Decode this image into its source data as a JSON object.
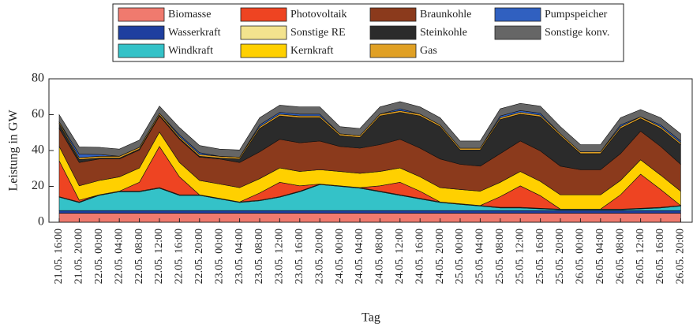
{
  "chart_data": {
    "type": "stacked_area",
    "ylabel": "Leistung in GW",
    "xlabel": "Tag",
    "categories": [
      "21.05. 16:00",
      "21.05. 20:00",
      "22.05. 00:00",
      "22.05. 04:00",
      "22.05. 08:00",
      "22.05. 12:00",
      "22.05. 16:00",
      "22.05. 20:00",
      "23.05. 00:00",
      "23.05. 04:00",
      "23.05. 08:00",
      "23.05. 12:00",
      "23.05. 16:00",
      "23.05. 20:00",
      "24.05. 00:00",
      "24.05. 04:00",
      "24.05. 08:00",
      "24.05. 12:00",
      "24.05. 16:00",
      "24.05. 20:00",
      "25.05. 00:00",
      "25.05. 04:00",
      "25.05. 08:00",
      "25.05. 12:00",
      "25.05. 16:00",
      "25.05. 20:00",
      "26.05. 00:00",
      "26.05. 04:00",
      "26.05. 08:00",
      "26.05. 12:00",
      "26.05. 16:00",
      "26.05. 20:00"
    ],
    "ylim": [
      0,
      80
    ],
    "yticks": [
      0,
      20,
      40,
      60,
      80
    ],
    "grid": false,
    "series": [
      {
        "name": "Biomasse",
        "color": "#f07a6e",
        "values": [
          5,
          5,
          5,
          5,
          5,
          5,
          5,
          5,
          5,
          5,
          5,
          5,
          5,
          5,
          5,
          5,
          5,
          5,
          5,
          5,
          5,
          5,
          5,
          5,
          5,
          5,
          5,
          5,
          5,
          5,
          5,
          5
        ]
      },
      {
        "name": "Wasserkraft",
        "color": "#1f3f9f",
        "values": [
          1.5,
          1.5,
          1.5,
          1.5,
          1.5,
          1.5,
          1.5,
          1.5,
          1.5,
          1.5,
          1.5,
          1.5,
          1.5,
          1.5,
          1.5,
          1.5,
          1.5,
          1.5,
          1.5,
          1.5,
          1.5,
          1.5,
          1.5,
          1.5,
          1.5,
          1.5,
          1.5,
          1.5,
          1.5,
          1.5,
          1.5,
          1.5
        ]
      },
      {
        "name": "Windkraft",
        "color": "#34c2c8",
        "values": [
          7.5,
          4.5,
          8.5,
          10.5,
          10.5,
          12.5,
          8.5,
          8.5,
          6.5,
          4.5,
          5.5,
          7.5,
          10.5,
          14.5,
          13.5,
          12.5,
          10.5,
          8.5,
          6.5,
          4.5,
          3.5,
          2.5,
          1.5,
          1.5,
          1,
          0.5,
          0.5,
          0.5,
          0.5,
          1,
          1.5,
          2.5
        ]
      },
      {
        "name": "Sonstige RE",
        "color": "#f3e38e",
        "values": [
          0.3,
          0.3,
          0.3,
          0.3,
          0.3,
          0.3,
          0.3,
          0.3,
          0.3,
          0.3,
          0.3,
          0.3,
          0.3,
          0.3,
          0.3,
          0.3,
          0.3,
          0.3,
          0.3,
          0.3,
          0.3,
          0.3,
          0.3,
          0.3,
          0.3,
          0.3,
          0.3,
          0.3,
          0.3,
          0.3,
          0.3,
          0.3
        ]
      },
      {
        "name": "Photovoltaik",
        "color": "#ee4422",
        "values": [
          20,
          1,
          0,
          0,
          5,
          23,
          10,
          0,
          0,
          0,
          4,
          8,
          3,
          0,
          0,
          0,
          3,
          7,
          4,
          0,
          0,
          0,
          6,
          12,
          7,
          0,
          0,
          0,
          8,
          19,
          10,
          0
        ]
      },
      {
        "name": "Kernkraft",
        "color": "#ffd000",
        "values": [
          8,
          8,
          8,
          8,
          8,
          8,
          8,
          8,
          8,
          8,
          8,
          8,
          8,
          8,
          8,
          8,
          8,
          8,
          8,
          8,
          8,
          8,
          8,
          8,
          8,
          8,
          8,
          8,
          8,
          8,
          8,
          8
        ]
      },
      {
        "name": "Braunkohle",
        "color": "#8b3a1c",
        "values": [
          10,
          13,
          12,
          10,
          10,
          9,
          13,
          13,
          14,
          14,
          15,
          16,
          16,
          16,
          14,
          14,
          15,
          16,
          16,
          16,
          14,
          14,
          16,
          17,
          17,
          16,
          14,
          14,
          15,
          16,
          16,
          15
        ]
      },
      {
        "name": "Steinkohle",
        "color": "#2b2b2b",
        "values": [
          2.7,
          1.7,
          0.5,
          0.5,
          0.5,
          0.5,
          0.5,
          0.5,
          0.5,
          2,
          13,
          13,
          14,
          13,
          6,
          6,
          16,
          15,
          18,
          18,
          8,
          9,
          19,
          15,
          19,
          17,
          9,
          9,
          14,
          7,
          10,
          11
        ]
      },
      {
        "name": "Gas",
        "color": "#e0a024",
        "values": [
          1,
          1,
          1,
          1,
          1,
          1,
          1,
          1,
          1,
          1,
          1,
          1,
          1,
          1,
          1,
          1,
          1,
          1,
          1,
          1,
          1,
          1,
          1,
          1,
          1,
          1,
          1,
          1,
          1,
          1,
          1,
          1
        ]
      },
      {
        "name": "Pumpspeicher",
        "color": "#3060c0",
        "values": [
          0,
          2,
          1,
          0,
          0,
          0,
          1,
          1,
          0,
          0,
          1,
          1,
          1,
          1,
          0,
          0,
          0,
          1,
          0,
          0,
          0,
          0,
          1,
          1,
          1,
          0,
          0,
          0,
          1,
          0,
          1,
          1
        ]
      },
      {
        "name": "Sonstige konv.",
        "color": "#666666",
        "values": [
          4,
          4,
          4,
          4,
          4,
          4,
          4,
          4,
          4,
          4,
          4,
          4,
          4,
          4,
          4,
          4,
          4,
          4,
          4,
          4,
          4,
          4,
          4,
          4,
          4,
          4,
          4,
          4,
          4,
          4,
          4,
          4
        ]
      }
    ]
  }
}
